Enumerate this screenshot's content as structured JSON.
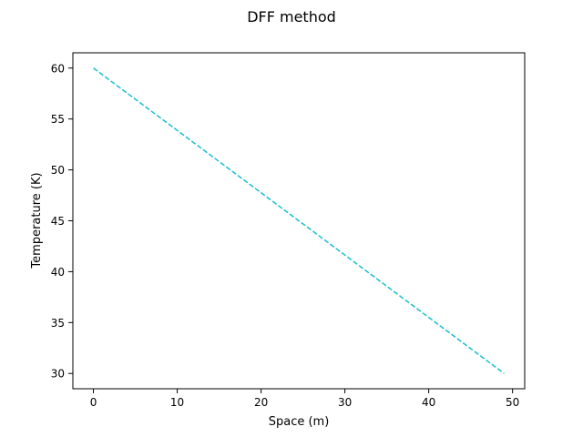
{
  "chart_data": {
    "type": "line",
    "title": "DFF method",
    "xlabel": "Space (m)",
    "ylabel": "Temperature (K)",
    "xlim": [
      -2.45,
      51.45
    ],
    "ylim": [
      28.5,
      61.5
    ],
    "xticks": [
      0,
      10,
      20,
      30,
      40,
      50
    ],
    "yticks": [
      30,
      35,
      40,
      45,
      50,
      55,
      60
    ],
    "grid": false,
    "series": [
      {
        "x": [
          0,
          49
        ],
        "y": [
          60,
          30
        ],
        "color": "#17becf",
        "linestyle": "dashed"
      }
    ]
  }
}
